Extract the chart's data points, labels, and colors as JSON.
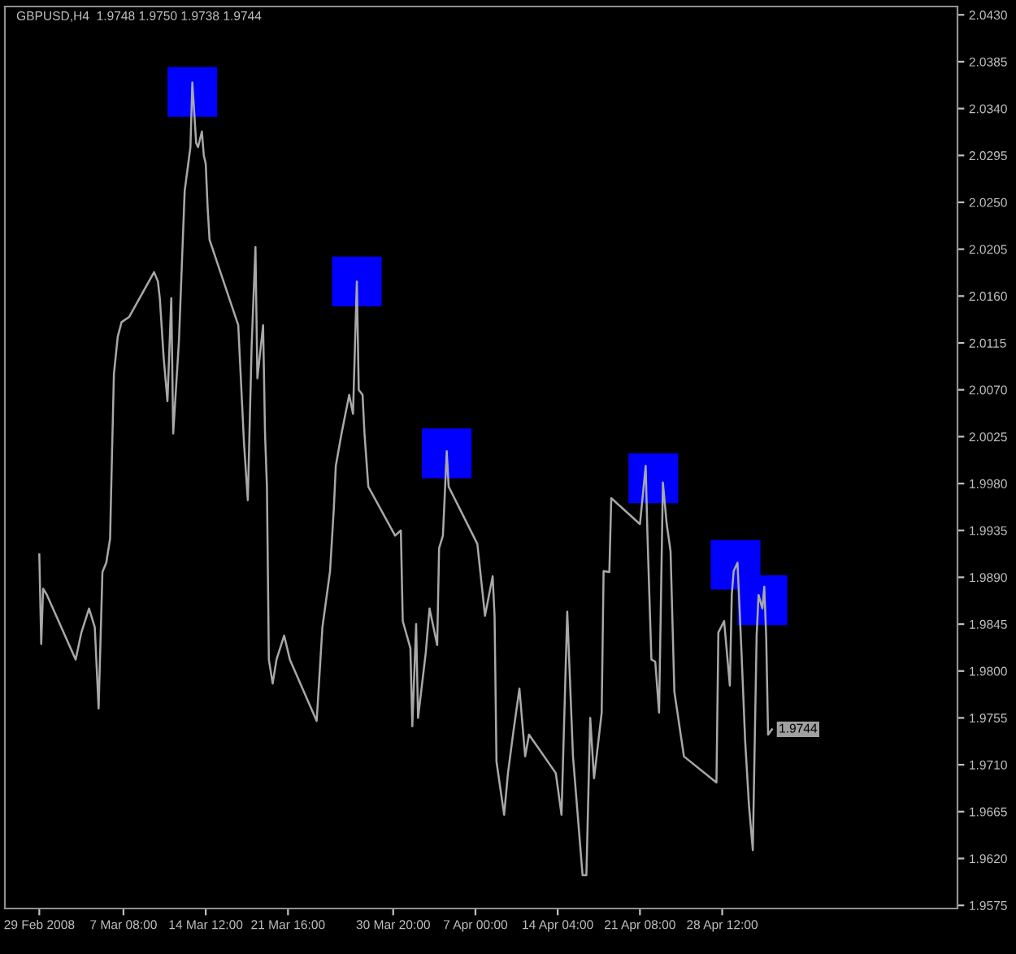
{
  "chart_data": {
    "type": "line",
    "title": "GBPUSD,H4  1.9748 1.9750 1.9738 1.9744",
    "xlim": [
      "2008-02-26T00:00",
      "2008-05-19T00:00"
    ],
    "ylim": [
      1.9572,
      2.0438
    ],
    "xticks": [
      {
        "value": "2008-02-29T00:00",
        "label": "29 Feb 2008"
      },
      {
        "value": "2008-03-07T08:00",
        "label": "7 Mar 08:00"
      },
      {
        "value": "2008-03-14T12:00",
        "label": "14 Mar 12:00"
      },
      {
        "value": "2008-03-21T16:00",
        "label": "21 Mar 16:00"
      },
      {
        "value": "2008-03-30T20:00",
        "label": "30 Mar 20:00"
      },
      {
        "value": "2008-04-07T00:00",
        "label": "7 Apr 00:00"
      },
      {
        "value": "2008-04-14T04:00",
        "label": "14 Apr 04:00"
      },
      {
        "value": "2008-04-21T08:00",
        "label": "21 Apr 08:00"
      },
      {
        "value": "2008-04-28T12:00",
        "label": "28 Apr 12:00"
      }
    ],
    "yticks": [
      {
        "value": 1.9575,
        "label": "1.9575"
      },
      {
        "value": 1.962,
        "label": "1.9620"
      },
      {
        "value": 1.9665,
        "label": "1.9665"
      },
      {
        "value": 1.971,
        "label": "1.9710"
      },
      {
        "value": 1.9755,
        "label": "1.9755"
      },
      {
        "value": 1.98,
        "label": "1.9800"
      },
      {
        "value": 1.9845,
        "label": "1.9845"
      },
      {
        "value": 1.989,
        "label": "1.9890"
      },
      {
        "value": 1.9935,
        "label": "1.9935"
      },
      {
        "value": 1.998,
        "label": "1.9980"
      },
      {
        "value": 2.0025,
        "label": "2.0025"
      },
      {
        "value": 2.007,
        "label": "2.0070"
      },
      {
        "value": 2.0115,
        "label": "2.0115"
      },
      {
        "value": 2.016,
        "label": "2.0160"
      },
      {
        "value": 2.0205,
        "label": "2.0205"
      },
      {
        "value": 2.025,
        "label": "2.0250"
      },
      {
        "value": 2.0295,
        "label": "2.0295"
      },
      {
        "value": 2.034,
        "label": "2.0340"
      },
      {
        "value": 2.0385,
        "label": "2.0385"
      },
      {
        "value": 2.043,
        "label": "2.0430"
      }
    ],
    "grid": false,
    "legend": false,
    "annotations": [
      {
        "text": "1.9744",
        "x": "2008-05-02T20:00",
        "y": 1.9744
      }
    ],
    "series": [
      {
        "type": "scatter",
        "marker": "square",
        "color": "#0000ff",
        "x": [
          "2008-03-13T08:00",
          "2008-03-27T16:00",
          "2008-04-04T12:00",
          "2008-04-22T12:00",
          "2008-04-29T16:00",
          "2008-05-02T00:00"
        ],
        "values": [
          2.0356,
          2.0174,
          2.0009,
          1.9985,
          1.9902,
          1.9868
        ]
      },
      {
        "marker": "none",
        "color": "#a8a8a8",
        "x": [
          "2008-02-29T00:00",
          "2008-02-29T04:00",
          "2008-02-29T08:00",
          "2008-02-29T16:00",
          "2008-03-03T04:00",
          "2008-03-03T16:00",
          "2008-03-04T08:00",
          "2008-03-04T20:00",
          "2008-03-05T04:00",
          "2008-03-05T12:00",
          "2008-03-05T20:00",
          "2008-03-06T04:00",
          "2008-03-06T08:00",
          "2008-03-06T12:00",
          "2008-03-06T20:00",
          "2008-03-07T04:00",
          "2008-03-07T20:00",
          "2008-03-10T00:00",
          "2008-03-10T08:00",
          "2008-03-10T12:00",
          "2008-03-10T20:00",
          "2008-03-11T04:00",
          "2008-03-11T12:00",
          "2008-03-11T16:00",
          "2008-03-12T04:00",
          "2008-03-12T16:00",
          "2008-03-13T04:00",
          "2008-03-13T08:00",
          "2008-03-13T16:00",
          "2008-03-13T20:00",
          "2008-03-14T04:00",
          "2008-03-14T08:00",
          "2008-03-14T12:00",
          "2008-03-14T16:00",
          "2008-03-14T20:00",
          "2008-03-17T08:00",
          "2008-03-17T20:00",
          "2008-03-18T04:00",
          "2008-03-18T12:00",
          "2008-03-18T20:00",
          "2008-03-19T00:00",
          "2008-03-19T12:00",
          "2008-03-19T16:00",
          "2008-03-19T20:00",
          "2008-03-20T00:00",
          "2008-03-20T08:00",
          "2008-03-20T16:00",
          "2008-03-21T08:00",
          "2008-03-21T20:00",
          "2008-03-24T04:00",
          "2008-03-24T16:00",
          "2008-03-25T08:00",
          "2008-03-25T16:00",
          "2008-03-25T20:00",
          "2008-03-26T08:00",
          "2008-03-27T00:00",
          "2008-03-27T08:00",
          "2008-03-27T16:00",
          "2008-03-27T20:00",
          "2008-03-28T04:00",
          "2008-03-28T08:00",
          "2008-03-28T16:00",
          "2008-03-31T00:00",
          "2008-03-31T12:00",
          "2008-03-31T16:00",
          "2008-04-01T08:00",
          "2008-04-01T12:00",
          "2008-04-01T20:00",
          "2008-04-02T00:00",
          "2008-04-02T16:00",
          "2008-04-03T00:00",
          "2008-04-03T16:00",
          "2008-04-03T20:00",
          "2008-04-04T04:00",
          "2008-04-04T12:00",
          "2008-04-04T16:00",
          "2008-04-07T04:00",
          "2008-04-07T20:00",
          "2008-04-08T12:00",
          "2008-04-08T16:00",
          "2008-04-08T20:00",
          "2008-04-09T12:00",
          "2008-04-09T20:00",
          "2008-04-10T08:00",
          "2008-04-10T20:00",
          "2008-04-11T08:00",
          "2008-04-11T16:00",
          "2008-04-14T00:00",
          "2008-04-14T12:00",
          "2008-04-15T00:00",
          "2008-04-15T12:00",
          "2008-04-16T08:00",
          "2008-04-16T16:00",
          "2008-04-17T00:00",
          "2008-04-17T08:00",
          "2008-04-18T00:00",
          "2008-04-18T04:00",
          "2008-04-18T16:00",
          "2008-04-18T20:00",
          "2008-04-21T08:00",
          "2008-04-21T20:00",
          "2008-04-22T00:00",
          "2008-04-22T08:00",
          "2008-04-22T16:00",
          "2008-04-23T00:00",
          "2008-04-23T08:00",
          "2008-04-23T16:00",
          "2008-04-24T00:00",
          "2008-04-24T08:00",
          "2008-04-25T04:00",
          "2008-04-28T00:00",
          "2008-04-28T04:00",
          "2008-04-28T16:00",
          "2008-04-29T04:00",
          "2008-04-29T08:00",
          "2008-04-29T12:00",
          "2008-04-29T20:00",
          "2008-04-30T04:00",
          "2008-04-30T12:00",
          "2008-04-30T20:00",
          "2008-05-01T04:00",
          "2008-05-01T12:00",
          "2008-05-01T16:00",
          "2008-05-02T00:00",
          "2008-05-02T04:00",
          "2008-05-02T08:00",
          "2008-05-02T12:00",
          "2008-05-02T20:00"
        ],
        "values": [
          1.9912,
          1.9826,
          1.9879,
          1.9873,
          1.9811,
          1.9837,
          1.986,
          1.9842,
          1.9764,
          1.9895,
          1.9904,
          1.9927,
          2.0008,
          2.0085,
          2.0121,
          2.0135,
          2.014,
          2.0183,
          2.0174,
          2.0158,
          2.0101,
          2.0059,
          2.0158,
          2.0028,
          2.0117,
          2.0261,
          2.0303,
          2.0365,
          2.0307,
          2.0303,
          2.0318,
          2.0295,
          2.0287,
          2.0245,
          2.0214,
          2.0132,
          2.0019,
          1.9964,
          2.0112,
          2.0207,
          2.0081,
          2.0132,
          2.0028,
          1.9977,
          1.9811,
          1.9788,
          1.9811,
          1.9834,
          1.9811,
          1.9752,
          1.9842,
          1.9896,
          1.9957,
          1.9997,
          2.0028,
          2.0065,
          2.0047,
          2.0174,
          2.007,
          2.0065,
          2.0028,
          1.9977,
          1.993,
          1.9935,
          1.9848,
          1.9822,
          1.9747,
          1.9845,
          1.9755,
          1.9817,
          1.986,
          1.9825,
          1.9918,
          1.993,
          2.0011,
          1.9977,
          1.9922,
          1.9853,
          1.9891,
          1.9853,
          1.9713,
          1.9662,
          1.9702,
          1.9744,
          1.9783,
          1.9718,
          1.9739,
          1.9702,
          1.9662,
          1.9857,
          1.9718,
          1.9604,
          1.9604,
          1.9755,
          1.9697,
          1.976,
          1.9896,
          1.9895,
          1.9966,
          1.9941,
          1.9997,
          1.9926,
          1.9811,
          1.9809,
          1.976,
          1.9981,
          1.9941,
          1.9915,
          1.978,
          1.9718,
          1.9693,
          1.9837,
          1.9848,
          1.9786,
          1.9873,
          1.9896,
          1.9904,
          1.9822,
          1.9733,
          1.9671,
          1.9628,
          1.9834,
          1.9873,
          1.986,
          1.9881,
          1.9833,
          1.9739,
          1.9744
        ]
      }
    ]
  }
}
